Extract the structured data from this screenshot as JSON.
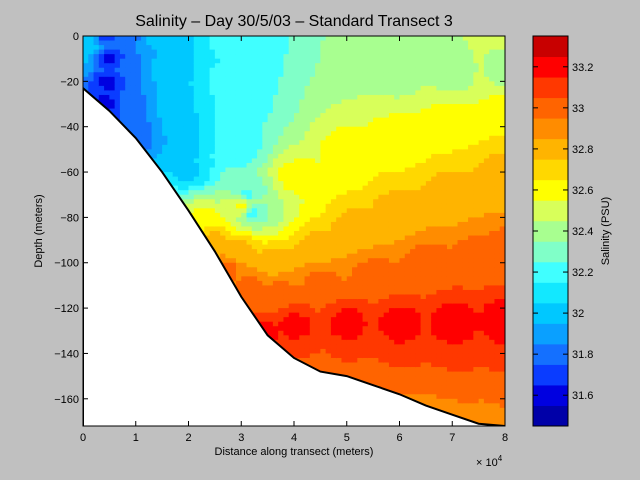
{
  "chart_data": {
    "type": "heatmap",
    "title": "Salinity – Day 30/5/03 – Standard Transect 3",
    "xlabel": "Distance along transect (meters)",
    "ylabel": "Depth (meters)",
    "x_exponent_label": "× 10",
    "x_exponent_power": "4",
    "x_ticks": [
      0,
      1,
      2,
      3,
      4,
      5,
      6,
      7,
      8
    ],
    "x_tick_labels": [
      "0",
      "1",
      "2",
      "3",
      "4",
      "5",
      "6",
      "7",
      "8"
    ],
    "xlim": [
      0,
      80000
    ],
    "y_ticks": [
      0,
      -20,
      -40,
      -60,
      -80,
      -100,
      -120,
      -140,
      -160
    ],
    "y_tick_labels": [
      "0",
      "−20",
      "−40",
      "−60",
      "−80",
      "−100",
      "−120",
      "−140",
      "−160"
    ],
    "ylim": [
      -172,
      0
    ],
    "colorbar": {
      "label": "Salinity (PSU)",
      "range": [
        31.45,
        33.35
      ],
      "ticks": [
        31.6,
        31.8,
        32,
        32.2,
        32.4,
        32.6,
        32.8,
        33,
        33.2
      ],
      "tick_labels": [
        "31.6",
        "31.8",
        "32",
        "32.2",
        "32.4",
        "32.6",
        "32.8",
        "33",
        "33.2"
      ],
      "levels": [
        31.45,
        31.55,
        31.65,
        31.75,
        31.85,
        31.95,
        32.05,
        32.15,
        32.25,
        32.35,
        32.45,
        32.55,
        32.65,
        32.75,
        32.85,
        32.95,
        33.05,
        33.15,
        33.25,
        33.35
      ],
      "colors": [
        "#0000a8",
        "#0000e0",
        "#0a3cff",
        "#1470ff",
        "#0aa0ff",
        "#00c8ff",
        "#12e8ff",
        "#40ffff",
        "#80ffc8",
        "#a8ff90",
        "#d8ff5a",
        "#ffff00",
        "#ffd800",
        "#ffb400",
        "#ff8c00",
        "#ff6400",
        "#ff3800",
        "#ff0000",
        "#c80000"
      ]
    },
    "bottom_profile": {
      "x": [
        0,
        5000,
        10000,
        15000,
        20000,
        25000,
        30000,
        35000,
        40000,
        45000,
        50000,
        55000,
        60000,
        65000,
        70000,
        75000,
        80000
      ],
      "depth": [
        -23,
        -33,
        -45,
        -60,
        -77,
        -95,
        -115,
        -132,
        -142,
        -148,
        -150,
        -154,
        -158,
        -163,
        -167,
        -171,
        -172
      ]
    },
    "contours": [
      {
        "salinity": 31.6,
        "x": [
          0,
          4000,
          5000,
          4800,
          4500,
          4000
        ],
        "depth": [
          0,
          0,
          -10,
          -20,
          -30,
          -38
        ]
      },
      {
        "salinity": 31.8,
        "x": [
          0,
          9000,
          9200,
          9500,
          10000,
          11000
        ],
        "depth": [
          0,
          0,
          -15,
          -30,
          -40,
          -46
        ]
      },
      {
        "salinity": 32.0,
        "x": [
          0,
          14000,
          15000,
          16000,
          18000,
          19000,
          20000
        ],
        "depth": [
          0,
          0,
          -15,
          -30,
          -40,
          -50,
          -60
        ]
      },
      {
        "salinity": 32.2,
        "x": [
          0,
          28000,
          28000,
          29000,
          30000,
          31000,
          32000
        ],
        "depth": [
          0,
          0,
          -20,
          -35,
          -50,
          -70,
          -78
        ]
      },
      {
        "salinity": 32.4,
        "x": [
          0,
          55000,
          56000,
          60000,
          70000,
          80000
        ],
        "depth": [
          0,
          0,
          -12,
          -17,
          -18,
          -18
        ]
      },
      {
        "salinity": 32.6,
        "x": [
          23000,
          30000,
          40000,
          50000,
          60000,
          70000,
          80000
        ],
        "depth": [
          -80,
          -75,
          -62,
          -52,
          -45,
          -36,
          -30
        ]
      },
      {
        "salinity": 32.8,
        "x": [
          25000,
          30000,
          36000,
          44000,
          52000,
          60000,
          70000,
          80000
        ],
        "depth": [
          -90,
          -95,
          -100,
          -95,
          -86,
          -78,
          -70,
          -62
        ]
      },
      {
        "salinity": 33.0,
        "x": [
          27500,
          32000,
          37000,
          45000,
          55000,
          65000,
          75000,
          80000
        ],
        "depth": [
          -103,
          -110,
          -113,
          -108,
          -105,
          -100,
          -97,
          -95
        ]
      },
      {
        "salinity": 33.2,
        "x": [
          34000,
          40000,
          50000,
          60000,
          70000,
          80000
        ],
        "depth": [
          -130,
          -127,
          -126,
          -126,
          -125,
          -124
        ]
      }
    ]
  }
}
